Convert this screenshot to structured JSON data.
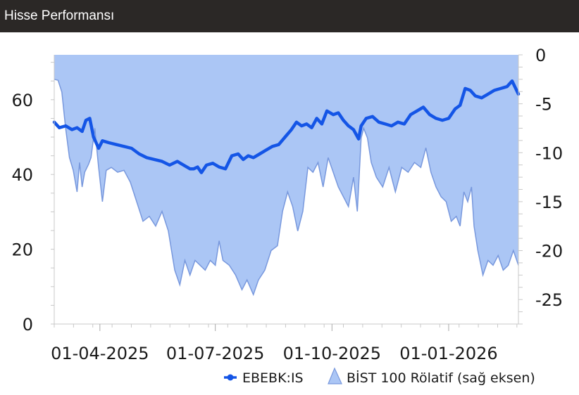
{
  "header": {
    "title": "Hisse Performansı"
  },
  "chart_data": {
    "type": "line",
    "x_tick_labels": [
      "01-04-2025",
      "01-07-2025",
      "01-10-2025",
      "01-01-2026"
    ],
    "x_tick_dates": [
      "2025-04-01",
      "2025-07-01",
      "2025-10-01",
      "2026-01-01"
    ],
    "x_range": [
      "2025-02-24",
      "2026-02-25"
    ],
    "y_left": {
      "ticks": [
        0,
        20,
        40,
        60
      ],
      "range": [
        0,
        72
      ]
    },
    "y_right": {
      "ticks": [
        0,
        -5,
        -10,
        -15,
        -20,
        -25
      ],
      "range": [
        -27.5,
        0
      ]
    },
    "grid": false,
    "legend_position": "bottom-right",
    "series": [
      {
        "name": "EBEBK:IS",
        "axis": "left",
        "kind": "line",
        "color": "#1455e6",
        "points": [
          [
            "2025-02-24",
            54.0
          ],
          [
            "2025-02-28",
            52.5
          ],
          [
            "2025-03-05",
            53.0
          ],
          [
            "2025-03-10",
            52.0
          ],
          [
            "2025-03-14",
            52.5
          ],
          [
            "2025-03-18",
            51.5
          ],
          [
            "2025-03-21",
            54.5
          ],
          [
            "2025-03-24",
            55.0
          ],
          [
            "2025-03-27",
            50.0
          ],
          [
            "2025-03-31",
            47.0
          ],
          [
            "2025-04-03",
            49.0
          ],
          [
            "2025-04-08",
            48.5
          ],
          [
            "2025-04-14",
            48.0
          ],
          [
            "2025-04-20",
            47.5
          ],
          [
            "2025-04-26",
            47.0
          ],
          [
            "2025-05-02",
            45.5
          ],
          [
            "2025-05-08",
            44.5
          ],
          [
            "2025-05-14",
            44.0
          ],
          [
            "2025-05-20",
            43.5
          ],
          [
            "2025-05-26",
            42.5
          ],
          [
            "2025-06-01",
            43.5
          ],
          [
            "2025-06-06",
            42.5
          ],
          [
            "2025-06-11",
            41.5
          ],
          [
            "2025-06-14",
            41.5
          ],
          [
            "2025-06-17",
            42.0
          ],
          [
            "2025-06-20",
            40.5
          ],
          [
            "2025-06-24",
            42.5
          ],
          [
            "2025-06-29",
            43.0
          ],
          [
            "2025-07-04",
            42.0
          ],
          [
            "2025-07-09",
            41.5
          ],
          [
            "2025-07-14",
            45.0
          ],
          [
            "2025-07-19",
            45.5
          ],
          [
            "2025-07-23",
            44.0
          ],
          [
            "2025-07-27",
            45.0
          ],
          [
            "2025-07-31",
            44.5
          ],
          [
            "2025-08-05",
            45.5
          ],
          [
            "2025-08-10",
            46.5
          ],
          [
            "2025-08-15",
            47.5
          ],
          [
            "2025-08-20",
            48.0
          ],
          [
            "2025-08-25",
            50.0
          ],
          [
            "2025-08-30",
            52.0
          ],
          [
            "2025-09-03",
            54.0
          ],
          [
            "2025-09-07",
            53.0
          ],
          [
            "2025-09-11",
            53.5
          ],
          [
            "2025-09-15",
            52.5
          ],
          [
            "2025-09-19",
            55.0
          ],
          [
            "2025-09-23",
            53.5
          ],
          [
            "2025-09-27",
            57.0
          ],
          [
            "2025-10-02",
            56.0
          ],
          [
            "2025-10-06",
            56.5
          ],
          [
            "2025-10-10",
            54.5
          ],
          [
            "2025-10-14",
            53.0
          ],
          [
            "2025-10-18",
            52.0
          ],
          [
            "2025-10-22",
            49.5
          ],
          [
            "2025-10-24",
            53.0
          ],
          [
            "2025-10-28",
            55.0
          ],
          [
            "2025-11-02",
            55.5
          ],
          [
            "2025-11-07",
            54.0
          ],
          [
            "2025-11-12",
            53.5
          ],
          [
            "2025-11-17",
            53.0
          ],
          [
            "2025-11-22",
            54.0
          ],
          [
            "2025-11-27",
            53.5
          ],
          [
            "2025-12-02",
            56.0
          ],
          [
            "2025-12-07",
            57.0
          ],
          [
            "2025-12-12",
            58.0
          ],
          [
            "2025-12-17",
            56.0
          ],
          [
            "2025-12-22",
            55.0
          ],
          [
            "2025-12-27",
            54.5
          ],
          [
            "2026-01-01",
            55.0
          ],
          [
            "2026-01-06",
            57.5
          ],
          [
            "2026-01-10",
            58.5
          ],
          [
            "2026-01-14",
            63.0
          ],
          [
            "2026-01-18",
            62.5
          ],
          [
            "2026-01-22",
            61.0
          ],
          [
            "2026-01-27",
            60.5
          ],
          [
            "2026-02-01",
            61.5
          ],
          [
            "2026-02-06",
            62.5
          ],
          [
            "2026-02-11",
            63.0
          ],
          [
            "2026-02-16",
            63.5
          ],
          [
            "2026-02-20",
            65.0
          ],
          [
            "2026-02-25",
            61.5
          ]
        ]
      },
      {
        "name": "BİST 100 Rölatif (sağ eksen)",
        "axis": "right",
        "kind": "area",
        "color": "#abc6f5",
        "stroke": "#7898dd",
        "points": [
          [
            "2025-02-24",
            -2.5
          ],
          [
            "2025-02-27",
            -2.6
          ],
          [
            "2025-03-02",
            -3.8
          ],
          [
            "2025-03-05",
            -7.5
          ],
          [
            "2025-03-08",
            -10.5
          ],
          [
            "2025-03-11",
            -11.8
          ],
          [
            "2025-03-14",
            -14.0
          ],
          [
            "2025-03-16",
            -11.0
          ],
          [
            "2025-03-18",
            -13.5
          ],
          [
            "2025-03-20",
            -12.0
          ],
          [
            "2025-03-23",
            -11.2
          ],
          [
            "2025-03-25",
            -10.5
          ],
          [
            "2025-03-28",
            -7.5
          ],
          [
            "2025-03-31",
            -11.5
          ],
          [
            "2025-04-03",
            -15.0
          ],
          [
            "2025-04-06",
            -11.8
          ],
          [
            "2025-04-10",
            -11.5
          ],
          [
            "2025-04-15",
            -12.0
          ],
          [
            "2025-04-20",
            -11.8
          ],
          [
            "2025-04-25",
            -13.0
          ],
          [
            "2025-04-30",
            -15.0
          ],
          [
            "2025-05-05",
            -17.0
          ],
          [
            "2025-05-10",
            -16.5
          ],
          [
            "2025-05-15",
            -17.5
          ],
          [
            "2025-05-20",
            -16.0
          ],
          [
            "2025-05-25",
            -18.0
          ],
          [
            "2025-05-30",
            -22.0
          ],
          [
            "2025-06-03",
            -23.5
          ],
          [
            "2025-06-07",
            -21.0
          ],
          [
            "2025-06-11",
            -22.5
          ],
          [
            "2025-06-15",
            -21.0
          ],
          [
            "2025-06-19",
            -21.5
          ],
          [
            "2025-06-23",
            -22.0
          ],
          [
            "2025-06-27",
            -21.0
          ],
          [
            "2025-07-01",
            -21.5
          ],
          [
            "2025-07-04",
            -19.0
          ],
          [
            "2025-07-07",
            -21.0
          ],
          [
            "2025-07-12",
            -21.5
          ],
          [
            "2025-07-17",
            -22.5
          ],
          [
            "2025-07-22",
            -24.0
          ],
          [
            "2025-07-26",
            -23.0
          ],
          [
            "2025-07-31",
            -24.5
          ],
          [
            "2025-08-04",
            -23.0
          ],
          [
            "2025-08-09",
            -22.0
          ],
          [
            "2025-08-14",
            -20.0
          ],
          [
            "2025-08-19",
            -19.5
          ],
          [
            "2025-08-23",
            -16.0
          ],
          [
            "2025-08-27",
            -14.0
          ],
          [
            "2025-08-31",
            -15.5
          ],
          [
            "2025-09-04",
            -18.0
          ],
          [
            "2025-09-08",
            -16.0
          ],
          [
            "2025-09-12",
            -11.5
          ],
          [
            "2025-09-16",
            -12.0
          ],
          [
            "2025-09-20",
            -11.0
          ],
          [
            "2025-09-24",
            -13.5
          ],
          [
            "2025-09-28",
            -10.5
          ],
          [
            "2025-10-02",
            -12.0
          ],
          [
            "2025-10-06",
            -13.5
          ],
          [
            "2025-10-10",
            -14.5
          ],
          [
            "2025-10-14",
            -15.5
          ],
          [
            "2025-10-18",
            -12.5
          ],
          [
            "2025-10-21",
            -16.0
          ],
          [
            "2025-10-24",
            -8.5
          ],
          [
            "2025-10-26",
            -7.5
          ],
          [
            "2025-10-29",
            -8.5
          ],
          [
            "2025-11-01",
            -11.0
          ],
          [
            "2025-11-05",
            -12.5
          ],
          [
            "2025-11-10",
            -13.5
          ],
          [
            "2025-11-15",
            -11.5
          ],
          [
            "2025-11-20",
            -14.0
          ],
          [
            "2025-11-25",
            -11.5
          ],
          [
            "2025-11-30",
            -12.0
          ],
          [
            "2025-12-05",
            -11.0
          ],
          [
            "2025-12-10",
            -11.5
          ],
          [
            "2025-12-14",
            -9.5
          ],
          [
            "2025-12-18",
            -12.0
          ],
          [
            "2025-12-22",
            -13.5
          ],
          [
            "2025-12-26",
            -14.5
          ],
          [
            "2025-12-30",
            -15.0
          ],
          [
            "2026-01-03",
            -17.0
          ],
          [
            "2026-01-07",
            -16.5
          ],
          [
            "2026-01-10",
            -17.5
          ],
          [
            "2026-01-13",
            -14.0
          ],
          [
            "2026-01-16",
            -15.0
          ],
          [
            "2026-01-19",
            -13.5
          ],
          [
            "2026-01-21",
            -17.5
          ],
          [
            "2026-01-24",
            -20.0
          ],
          [
            "2026-01-28",
            -22.5
          ],
          [
            "2026-02-01",
            -21.0
          ],
          [
            "2026-02-05",
            -21.5
          ],
          [
            "2026-02-09",
            -20.5
          ],
          [
            "2026-02-13",
            -22.0
          ],
          [
            "2026-02-17",
            -21.5
          ],
          [
            "2026-02-21",
            -20.0
          ],
          [
            "2026-02-25",
            -21.5
          ]
        ]
      }
    ]
  }
}
